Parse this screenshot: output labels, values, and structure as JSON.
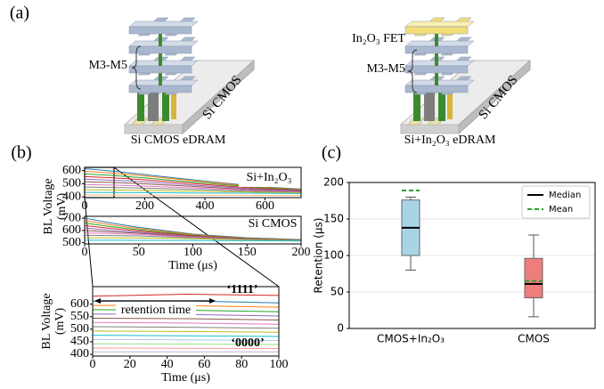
{
  "panel_labels": [
    "(a)",
    "(b)",
    "(c)"
  ],
  "illustrations": [
    {
      "labels": [
        "M3-M5",
        "Si CMOS"
      ],
      "caption": "Si CMOS eDRAM"
    },
    {
      "labels": [
        "In₂O₃ FET",
        "M3-M5",
        "Si CMOS"
      ],
      "caption": "Si+In₂O₃ eDRAM"
    }
  ],
  "chart_data": [
    {
      "type": "line",
      "annotations": [
        "Si+In₂O₃"
      ],
      "y_label": [
        "BL Voltage",
        "(mV)"
      ],
      "x": [
        0,
        100,
        200,
        400,
        600,
        720
      ],
      "xlim": [
        0,
        720
      ],
      "ylim": [
        395,
        625
      ],
      "xticks": [
        0,
        200,
        400,
        600
      ],
      "yticks": [
        400,
        500,
        600
      ],
      "series": [
        {
          "color": "#1f77b4",
          "values": [
            615,
            595,
            570,
            520,
            475,
            460
          ]
        },
        {
          "color": "#ff7f0e",
          "values": [
            595,
            580,
            560,
            515,
            472,
            458
          ]
        },
        {
          "color": "#2ca02c",
          "values": [
            575,
            562,
            545,
            505,
            468,
            455
          ]
        },
        {
          "color": "#d62728",
          "values": [
            555,
            545,
            530,
            495,
            462,
            452
          ]
        },
        {
          "color": "#9467bd",
          "values": [
            535,
            527,
            515,
            485,
            456,
            448
          ]
        },
        {
          "color": "#8c564b",
          "values": [
            515,
            510,
            500,
            475,
            450,
            444
          ]
        },
        {
          "color": "#e377c2",
          "values": [
            495,
            490,
            483,
            465,
            445,
            440
          ]
        },
        {
          "color": "#7f7f7f",
          "values": [
            475,
            472,
            467,
            455,
            440,
            436
          ]
        },
        {
          "color": "#bcbd22",
          "values": [
            455,
            453,
            450,
            443,
            435,
            432
          ]
        },
        {
          "color": "#17becf",
          "values": [
            435,
            434,
            433,
            430,
            428,
            426
          ]
        },
        {
          "color": "#ffbb78",
          "values": [
            415,
            415,
            414,
            413,
            412,
            411
          ]
        }
      ]
    },
    {
      "type": "line",
      "annotations": [
        "Si CMOS"
      ],
      "x_label": "Time (μs)",
      "x": [
        0,
        25,
        50,
        100,
        150,
        200
      ],
      "xlim": [
        0,
        200
      ],
      "ylim": [
        490,
        715
      ],
      "xticks": [
        0,
        50,
        100,
        150,
        200
      ],
      "yticks": [
        500,
        600,
        700
      ],
      "series": [
        {
          "color": "#1f77b4",
          "values": [
            700,
            660,
            625,
            570,
            540,
            525
          ]
        },
        {
          "color": "#ff7f0e",
          "values": [
            680,
            645,
            615,
            565,
            537,
            523
          ]
        },
        {
          "color": "#2ca02c",
          "values": [
            660,
            630,
            605,
            560,
            535,
            522
          ]
        },
        {
          "color": "#d62728",
          "values": [
            640,
            615,
            595,
            555,
            532,
            520
          ]
        },
        {
          "color": "#9467bd",
          "values": [
            620,
            600,
            585,
            550,
            530,
            519
          ]
        },
        {
          "color": "#8c564b",
          "values": [
            600,
            588,
            577,
            547,
            528,
            518
          ]
        },
        {
          "color": "#e377c2",
          "values": [
            580,
            575,
            568,
            545,
            527,
            517
          ]
        },
        {
          "color": "#7f7f7f",
          "values": [
            560,
            558,
            555,
            540,
            525,
            516
          ]
        },
        {
          "color": "#bcbd22",
          "values": [
            540,
            540,
            538,
            533,
            522,
            515
          ]
        },
        {
          "color": "#17becf",
          "values": [
            520,
            520,
            519,
            518,
            516,
            514
          ]
        }
      ]
    },
    {
      "type": "line",
      "annotations": [
        "‘1111’",
        "‘0000’",
        "retention time"
      ],
      "x_label": "Time (μs)",
      "y_label": [
        "BL Voltage",
        "(mV)"
      ],
      "x": [
        0,
        50,
        100
      ],
      "xlim": [
        0,
        100
      ],
      "ylim": [
        393,
        670
      ],
      "xticks": [
        0,
        20,
        40,
        60,
        80,
        100
      ],
      "yticks": [
        400,
        450,
        500,
        550,
        600
      ],
      "series": [
        {
          "color": "#d62728",
          "values": [
            632,
            640,
            635
          ]
        },
        {
          "color": "#1f77b4",
          "values": [
            612,
            613,
            605
          ]
        },
        {
          "color": "#ff7f0e",
          "values": [
            595,
            594,
            588
          ]
        },
        {
          "color": "#2ca02c",
          "values": [
            578,
            576,
            570
          ]
        },
        {
          "color": "#9467bd",
          "values": [
            561,
            559,
            553
          ]
        },
        {
          "color": "#8c564b",
          "values": [
            544,
            542,
            537
          ]
        },
        {
          "color": "#e377c2",
          "values": [
            527,
            525,
            520
          ]
        },
        {
          "color": "#7f7f7f",
          "values": [
            510,
            508,
            504
          ]
        },
        {
          "color": "#bcbd22",
          "values": [
            493,
            491,
            488
          ]
        },
        {
          "color": "#17becf",
          "values": [
            476,
            474,
            471
          ]
        },
        {
          "color": "#aec7e8",
          "values": [
            459,
            458,
            455
          ]
        },
        {
          "color": "#98df8a",
          "values": [
            442,
            441,
            439
          ]
        },
        {
          "color": "#ff9896",
          "values": [
            425,
            424,
            423
          ]
        },
        {
          "color": "#c5b0d5",
          "values": [
            410,
            410,
            410
          ]
        }
      ]
    },
    {
      "type": "box",
      "y_label": "Retention (μs)",
      "categories": [
        "CMOS+In₂O₃",
        "CMOS"
      ],
      "ylim": [
        0,
        200
      ],
      "yticks": [
        0,
        50,
        100,
        150,
        200
      ],
      "grid": true,
      "legend_position": "upper right",
      "legend": [
        {
          "name": "Median",
          "color": "#000000",
          "dash": false
        },
        {
          "name": "Mean",
          "color": "#2ca02c",
          "dash": true
        }
      ],
      "series": [
        {
          "color": "#a8d5e5",
          "whislo": 80,
          "q1": 100,
          "med": 138,
          "q3": 176,
          "whishi": 180,
          "mean": 189
        },
        {
          "color": "#ee7d7d",
          "whislo": 16,
          "q1": 42,
          "med": 61,
          "q3": 96,
          "whishi": 128,
          "mean": 65
        }
      ]
    }
  ]
}
